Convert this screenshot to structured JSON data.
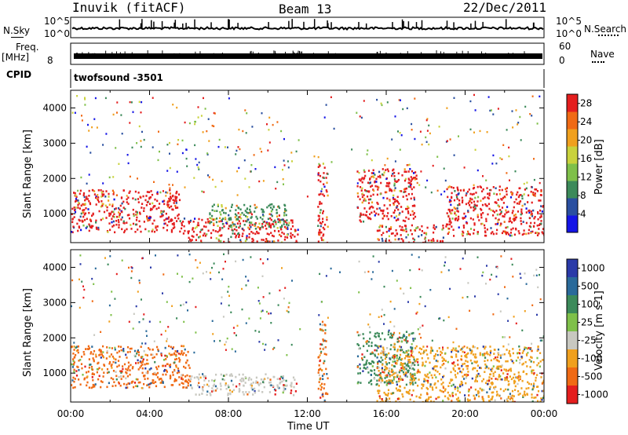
{
  "header": {
    "station": "Inuvik (fitACF)",
    "beam": "Beam 13",
    "date": "22/Dec/2011"
  },
  "top_panels": {
    "nsky_label": "N.Sky",
    "nsky_ticks": [
      "10^5",
      "10^0"
    ],
    "nsearch_label": "N.Search",
    "freq_label_line1": "Freq.",
    "freq_label_line2": "[MHz]",
    "freq_tick_left": "8",
    "nave_label": "Nave",
    "nave_ticks": [
      "60",
      "0"
    ],
    "cpid_label": "CPID",
    "cpid_value": "twofsound  -3501"
  },
  "chart_data": [
    {
      "type": "heatmap",
      "name": "power",
      "ylabel": "Slant Range [km]",
      "yticks": [
        1000,
        2000,
        3000,
        4000
      ],
      "ylim": [
        180,
        4500
      ],
      "colorbar": {
        "label": "Power [dB]",
        "ticks": [
          4,
          8,
          12,
          16,
          20,
          24,
          28
        ],
        "colors": [
          "#1414e6",
          "#2a4fa0",
          "#3c8a5a",
          "#7fc04a",
          "#c9d23c",
          "#f0a01e",
          "#f06a14",
          "#e41e1e"
        ],
        "range": [
          0,
          30
        ]
      },
      "regions": [
        {
          "t0": 0.0,
          "t1": 5.5,
          "r0": 500,
          "r1": 1700,
          "dominant": "#e41e1e"
        },
        {
          "t0": 5.5,
          "t1": 11.5,
          "r0": 200,
          "r1": 900,
          "dominant": "#e41e1e"
        },
        {
          "t0": 7.0,
          "t1": 11.0,
          "r0": 600,
          "r1": 1300,
          "dominant": "#3c8a5a"
        },
        {
          "t0": 12.5,
          "t1": 13.0,
          "r0": 200,
          "r1": 2500,
          "dominant": "#e41e1e"
        },
        {
          "t0": 14.5,
          "t1": 17.5,
          "r0": 800,
          "r1": 2300,
          "dominant": "#e41e1e"
        },
        {
          "t0": 15.5,
          "t1": 19.0,
          "r0": 200,
          "r1": 700,
          "dominant": "#e41e1e"
        },
        {
          "t0": 19.0,
          "t1": 24.0,
          "r0": 400,
          "r1": 1800,
          "dominant": "#e41e1e"
        }
      ]
    },
    {
      "type": "heatmap",
      "name": "velocity",
      "ylabel": "Slant Range [km]",
      "xlabel": "Time UT",
      "xticks": [
        "00:00",
        "04:00",
        "08:00",
        "12:00",
        "16:00",
        "20:00",
        "00:00"
      ],
      "xlim": [
        0,
        24
      ],
      "yticks": [
        1000,
        2000,
        3000,
        4000
      ],
      "ylim": [
        180,
        4500
      ],
      "colorbar": {
        "label": "Velocity [m s-1]",
        "tick_labels": [
          "1000",
          "500",
          "100",
          "25",
          "-25",
          "-100",
          "-500",
          "-1000"
        ],
        "colors": [
          "#2a3aa8",
          "#2a6a9a",
          "#3c8a5a",
          "#7fc04a",
          "#c8c8c0",
          "#f0a01e",
          "#f06a14",
          "#e41e1e"
        ]
      },
      "regions": [
        {
          "t0": 0.0,
          "t1": 6.0,
          "r0": 600,
          "r1": 1800,
          "dominant": "#f06a14"
        },
        {
          "t0": 6.0,
          "t1": 11.5,
          "r0": 400,
          "r1": 1000,
          "dominant": "#c8c8c0"
        },
        {
          "t0": 12.5,
          "t1": 13.0,
          "r0": 200,
          "r1": 2500,
          "dominant": "#f06a14"
        },
        {
          "t0": 14.5,
          "t1": 17.5,
          "r0": 700,
          "r1": 2200,
          "dominant": "#3c8a5a"
        },
        {
          "t0": 15.5,
          "t1": 24.0,
          "r0": 200,
          "r1": 1800,
          "dominant": "#f0a01e"
        }
      ]
    }
  ]
}
